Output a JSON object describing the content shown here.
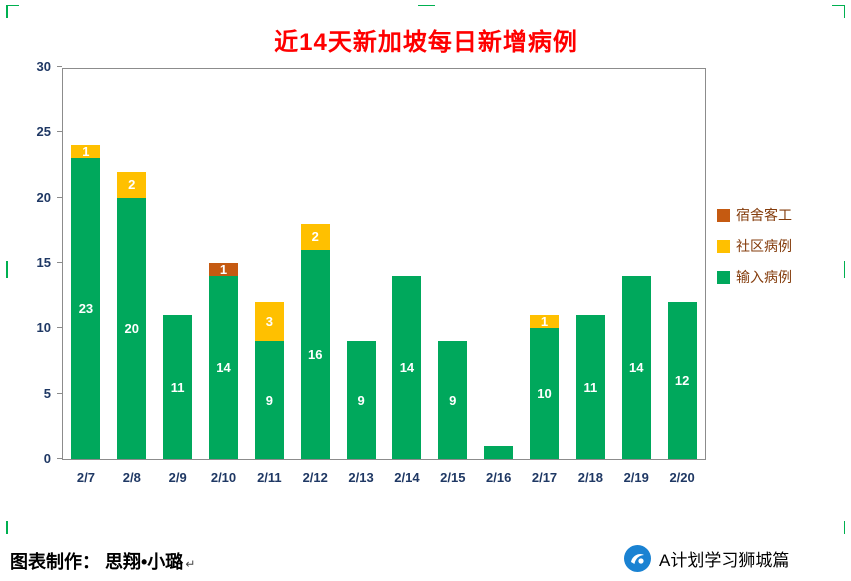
{
  "window": {
    "selection_handle_color": "#00b050"
  },
  "chart_data": {
    "type": "bar",
    "stacked": true,
    "title": "近14天新加坡每日新增病例",
    "title_color": "#ff0000",
    "categories": [
      "2/7",
      "2/8",
      "2/9",
      "2/10",
      "2/11",
      "2/12",
      "2/13",
      "2/14",
      "2/15",
      "2/16",
      "2/17",
      "2/18",
      "2/19",
      "2/20"
    ],
    "series": [
      {
        "name": "输入病例",
        "slug": "imported-cases",
        "color": "#00a85c",
        "values": [
          23,
          20,
          11,
          14,
          9,
          16,
          9,
          14,
          9,
          1,
          10,
          11,
          14,
          12
        ],
        "labels": [
          "23",
          "20",
          "11",
          "14",
          "9",
          "16",
          "9",
          "14",
          "9",
          "",
          "10",
          "11",
          "14",
          "12"
        ]
      },
      {
        "name": "社区病例",
        "slug": "community-cases",
        "color": "#ffc000",
        "values": [
          1,
          2,
          0,
          0,
          3,
          2,
          0,
          0,
          0,
          0,
          1,
          0,
          0,
          0
        ],
        "labels": [
          "1",
          "2",
          "",
          "",
          "3",
          "2",
          "",
          "",
          "",
          "",
          "1",
          "",
          "",
          ""
        ]
      },
      {
        "name": "宿舍客工",
        "slug": "dorm-workers",
        "color": "#c55a11",
        "values": [
          0,
          0,
          0,
          1,
          0,
          0,
          0,
          0,
          0,
          0,
          0,
          0,
          0,
          0
        ],
        "labels": [
          "",
          "",
          "",
          "1",
          "",
          "",
          "",
          "",
          "",
          "",
          "",
          "",
          "",
          ""
        ]
      }
    ],
    "legend": [
      "宿舍客工",
      "社区病例",
      "输入病例"
    ],
    "legend_position": "right",
    "legend_text_color": "#843c0c",
    "ylim": [
      0,
      30
    ],
    "yticks": [
      0,
      5,
      10,
      15,
      20,
      25,
      30
    ],
    "grid": false,
    "axis_label_color": "#1f3864",
    "bar_label_color": "#ffffff"
  },
  "footer": {
    "credit": "图表制作： 思翔•小璐",
    "paragraph_mark": "↵",
    "account_name": "A计划学习狮城篇",
    "account_icon": "blue-circle-logo",
    "account_icon_color": "#1a82d2"
  }
}
